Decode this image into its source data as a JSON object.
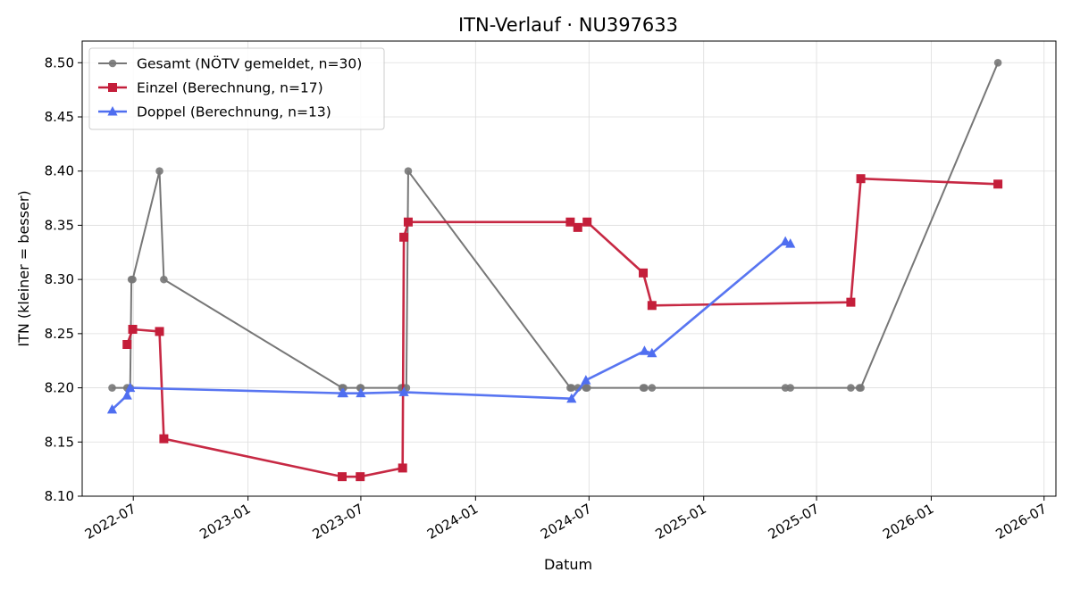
{
  "chart_data": {
    "type": "line",
    "title": "ITN-Verlauf · NU397633",
    "xlabel": "Datum",
    "ylabel": "ITN  (kleiner = besser)",
    "x_type": "date",
    "xlim": [
      "2022-04-10",
      "2026-07-20"
    ],
    "ylim": [
      8.1,
      8.52
    ],
    "x_ticks": [
      "2022-07-01",
      "2023-01-01",
      "2023-07-01",
      "2024-01-01",
      "2024-07-01",
      "2025-01-01",
      "2025-07-01",
      "2026-01-01",
      "2026-07-01"
    ],
    "x_tick_labels": [
      "2022-07",
      "2023-01",
      "2023-07",
      "2024-01",
      "2024-07",
      "2025-01",
      "2025-07",
      "2026-01",
      "2026-07"
    ],
    "y_ticks": [
      8.1,
      8.15,
      8.2,
      8.25,
      8.3,
      8.35,
      8.4,
      8.45,
      8.5
    ],
    "y_tick_labels": [
      "8.10",
      "8.15",
      "8.20",
      "8.25",
      "8.30",
      "8.35",
      "8.40",
      "8.45",
      "8.50"
    ],
    "grid": true,
    "legend": "top-left",
    "series": [
      {
        "name": "Gesamt (NÖTV gemeldet, n=30)",
        "color": "#777777",
        "marker": "circle",
        "x": [
          "2022-05-28",
          "2022-06-21",
          "2022-06-26",
          "2022-06-28",
          "2022-06-30",
          "2022-08-12",
          "2022-08-19",
          "2023-06-01",
          "2023-06-03",
          "2023-06-30",
          "2023-07-01",
          "2023-09-04",
          "2023-09-06",
          "2023-09-08",
          "2023-09-12",
          "2023-09-15",
          "2024-06-01",
          "2024-06-03",
          "2024-06-13",
          "2024-06-26",
          "2024-06-28",
          "2024-09-26",
          "2024-09-28",
          "2024-10-10",
          "2025-05-12",
          "2025-05-20",
          "2025-08-25",
          "2025-09-08",
          "2025-09-10",
          "2026-04-18"
        ],
        "values": [
          8.2,
          8.2,
          8.2,
          8.3,
          8.3,
          8.4,
          8.3,
          8.2,
          8.2,
          8.2,
          8.2,
          8.2,
          8.2,
          8.2,
          8.2,
          8.4,
          8.2,
          8.2,
          8.2,
          8.2,
          8.2,
          8.2,
          8.2,
          8.2,
          8.2,
          8.2,
          8.2,
          8.2,
          8.2,
          8.5
        ]
      },
      {
        "name": "Einzel (Berechnung, n=17)",
        "color": "#c41e3a",
        "marker": "square",
        "x": [
          "2022-06-21",
          "2022-06-30",
          "2022-08-12",
          "2022-08-19",
          "2023-06-01",
          "2023-06-30",
          "2023-09-06",
          "2023-09-08",
          "2023-09-15",
          "2024-06-01",
          "2024-06-13",
          "2024-06-28",
          "2024-09-26",
          "2024-10-10",
          "2025-08-25",
          "2025-09-10",
          "2026-04-18"
        ],
        "values": [
          8.24,
          8.254,
          8.252,
          8.153,
          8.118,
          8.118,
          8.126,
          8.339,
          8.353,
          8.353,
          8.348,
          8.353,
          8.306,
          8.276,
          8.279,
          8.393,
          8.388
        ]
      },
      {
        "name": "Doppel (Berechnung, n=13)",
        "color": "#4f6ef0",
        "marker": "triangle",
        "x": [
          "2022-05-28",
          "2022-06-21",
          "2022-06-26",
          "2023-06-01",
          "2023-06-03",
          "2023-07-01",
          "2023-09-08",
          "2024-06-03",
          "2024-06-26",
          "2024-09-28",
          "2024-10-10",
          "2025-05-12",
          "2025-05-20"
        ],
        "values": [
          8.18,
          8.193,
          8.2,
          8.195,
          8.195,
          8.195,
          8.196,
          8.19,
          8.207,
          8.234,
          8.232,
          8.335,
          8.333
        ]
      }
    ]
  }
}
